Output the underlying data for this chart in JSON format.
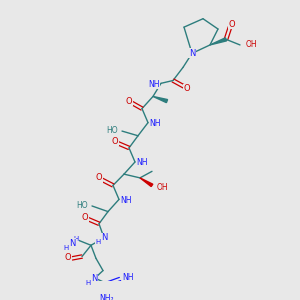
{
  "bg_color": "#e8e8e8",
  "bond_color": "#2d7d7d",
  "N_color": "#1a1aff",
  "O_color": "#cc0000",
  "figsize": [
    3.0,
    3.0
  ],
  "dpi": 100,
  "xlim": [
    0,
    300
  ],
  "ylim": [
    0,
    300
  ]
}
